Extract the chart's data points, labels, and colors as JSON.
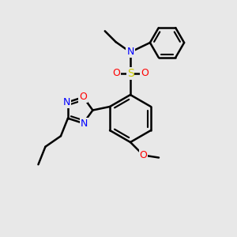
{
  "background_color": "#e8e8e8",
  "bond_color": "#000000",
  "bond_width": 1.8,
  "atom_colors": {
    "N": "#0000ff",
    "O": "#ff0000",
    "S": "#cccc00",
    "C": "#000000"
  }
}
